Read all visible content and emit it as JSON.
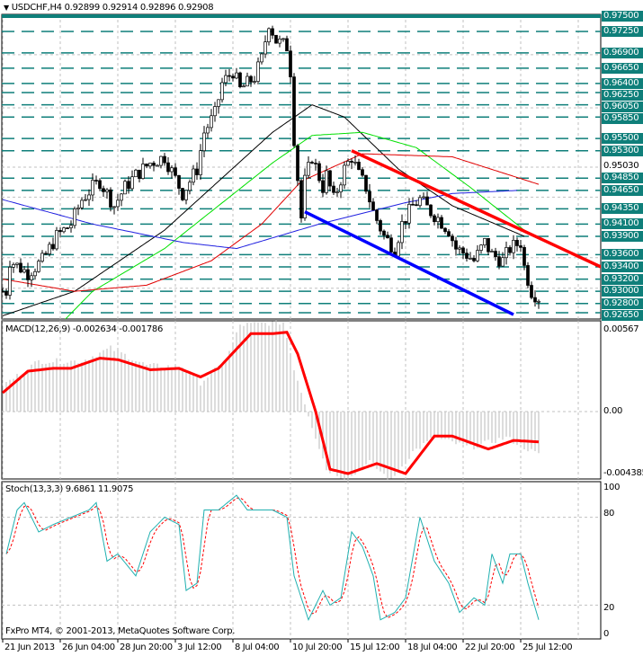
{
  "header": {
    "symbol": "USDCHF,H4",
    "ohlc": "0.92899 0.92914 0.92896 0.92908"
  },
  "copyright": "FxPro MT4, © 2001-2013, MetaQuotes Software Corp.",
  "colors": {
    "level": "#0f7f7a",
    "trend_red": "#ff0000",
    "trend_blue": "#0000ff",
    "ma_black": "#000000",
    "ma_green": "#00e000",
    "ma_red": "#e00000",
    "ma_blue": "#2020e0",
    "macd_signal": "#ff0000",
    "macd_hist": "#b8b8b8",
    "stoch_main": "#20b0b0",
    "stoch_signal": "#ff0000"
  },
  "chart_data": [
    {
      "type": "candlestick",
      "title": "USDCHF,H4",
      "ylim": [
        0.9265,
        0.975
      ],
      "price_levels": [
        "0.97500",
        "0.97250",
        "0.96900",
        "0.96650",
        "0.96400",
        "0.96250",
        "0.96050",
        "0.95850",
        "0.95500",
        "0.95300",
        "0.94850",
        "0.94650",
        "0.94350",
        "0.94100",
        "0.93900",
        "0.93600",
        "0.93400",
        "0.93200",
        "0.93000",
        "0.92800",
        "0.92650"
      ],
      "axis_ticks": [
        "0.95030"
      ],
      "x_labels": [
        "21 Jun 2013",
        "26 Jun 04:00",
        "28 Jun 20:00",
        "3 Jul 12:00",
        "8 Jul 04:00",
        "10 Jul 20:00",
        "15 Jul 12:00",
        "18 Jul 04:00",
        "22 Jul 20:00",
        "25 Jul 12:00"
      ],
      "close_path": [
        [
          1,
          0.93
        ],
        [
          2,
          0.935
        ],
        [
          7,
          0.933
        ],
        [
          11,
          0.935
        ],
        [
          15,
          0.939
        ],
        [
          19,
          0.941
        ],
        [
          22,
          0.945
        ],
        [
          25,
          0.947
        ],
        [
          27,
          0.948
        ],
        [
          31,
          0.944
        ],
        [
          34,
          0.947
        ],
        [
          37,
          0.949
        ],
        [
          41,
          0.951
        ],
        [
          45,
          0.952
        ],
        [
          50,
          0.946
        ],
        [
          54,
          0.95
        ],
        [
          56,
          0.956
        ],
        [
          59,
          0.959
        ],
        [
          61,
          0.964
        ],
        [
          64,
          0.966
        ],
        [
          66,
          0.963
        ],
        [
          70,
          0.965
        ],
        [
          72,
          0.968
        ],
        [
          74,
          0.974
        ],
        [
          76,
          0.971
        ],
        [
          79,
          0.97
        ],
        [
          80,
          0.966
        ],
        [
          81,
          0.955
        ],
        [
          83,
          0.942
        ],
        [
          84,
          0.948
        ],
        [
          86,
          0.952
        ],
        [
          89,
          0.947
        ],
        [
          90,
          0.949
        ],
        [
          92,
          0.945
        ],
        [
          95,
          0.95
        ],
        [
          97,
          0.952
        ],
        [
          99,
          0.949
        ],
        [
          101,
          0.947
        ],
        [
          103,
          0.943
        ],
        [
          106,
          0.939
        ],
        [
          109,
          0.937
        ],
        [
          111,
          0.941
        ],
        [
          114,
          0.944
        ],
        [
          116,
          0.945
        ],
        [
          119,
          0.943
        ],
        [
          121,
          0.942
        ],
        [
          124,
          0.94
        ],
        [
          126,
          0.937
        ],
        [
          129,
          0.936
        ],
        [
          131,
          0.935
        ],
        [
          134,
          0.938
        ],
        [
          136,
          0.936
        ],
        [
          139,
          0.935
        ],
        [
          141,
          0.937
        ],
        [
          144,
          0.938
        ],
        [
          145,
          0.934
        ],
        [
          147,
          0.93
        ],
        [
          149,
          0.929
        ]
      ],
      "moving_averages": [
        {
          "name": "black",
          "points": [
            [
              0,
              0.926
            ],
            [
              20,
              0.93
            ],
            [
              45,
              0.94
            ],
            [
              60,
              0.948
            ],
            [
              75,
              0.956
            ],
            [
              86,
              0.9605
            ],
            [
              95,
              0.9585
            ],
            [
              110,
              0.95
            ],
            [
              125,
              0.944
            ],
            [
              145,
              0.939
            ]
          ]
        },
        {
          "name": "green",
          "points": [
            [
              15,
              0.924
            ],
            [
              25,
              0.93
            ],
            [
              45,
              0.937
            ],
            [
              60,
              0.944
            ],
            [
              75,
              0.951
            ],
            [
              86,
              0.9555
            ],
            [
              100,
              0.956
            ],
            [
              115,
              0.9535
            ],
            [
              130,
              0.947
            ],
            [
              145,
              0.94
            ]
          ]
        },
        {
          "name": "red",
          "points": [
            [
              0,
              0.932
            ],
            [
              20,
              0.93
            ],
            [
              40,
              0.931
            ],
            [
              58,
              0.935
            ],
            [
              72,
              0.941
            ],
            [
              83,
              0.948
            ],
            [
              100,
              0.9525
            ],
            [
              125,
              0.952
            ],
            [
              149,
              0.9475
            ]
          ]
        },
        {
          "name": "blue",
          "points": [
            [
              0,
              0.945
            ],
            [
              25,
              0.941
            ],
            [
              50,
              0.938
            ],
            [
              65,
              0.937
            ],
            [
              88,
              0.941
            ],
            [
              112,
              0.9445
            ],
            [
              125,
              0.946
            ],
            [
              143,
              0.9465
            ]
          ]
        }
      ],
      "trendlines": [
        {
          "name": "red",
          "from": [
            97,
            0.953
          ],
          "to": [
            167,
            0.9338
          ]
        },
        {
          "name": "blue",
          "from": [
            84,
            0.943
          ],
          "to": [
            142,
            0.9262
          ]
        }
      ]
    },
    {
      "type": "line",
      "title": "MACD(12,26,9) -0.002634 -0.001786",
      "ylim": [
        -0.004385,
        0.00567
      ],
      "y_ticks": [
        "0.00567",
        "0.00",
        "-0.004385"
      ],
      "signal": [
        [
          0,
          0.0013
        ],
        [
          7,
          0.0028
        ],
        [
          14,
          0.003
        ],
        [
          19,
          0.003
        ],
        [
          27,
          0.0037
        ],
        [
          32,
          0.0036
        ],
        [
          41,
          0.0029
        ],
        [
          49,
          0.003
        ],
        [
          55,
          0.0024
        ],
        [
          60,
          0.003
        ],
        [
          69,
          0.0054
        ],
        [
          75,
          0.0054
        ],
        [
          79,
          0.0055
        ],
        [
          82,
          0.004
        ],
        [
          87,
          0.0
        ],
        [
          91,
          -0.004
        ],
        [
          96,
          -0.0043
        ],
        [
          104,
          -0.0036
        ],
        [
          112,
          -0.0043
        ],
        [
          120,
          -0.0017
        ],
        [
          125,
          -0.0017
        ],
        [
          135,
          -0.0026
        ],
        [
          142,
          -0.002
        ],
        [
          149,
          -0.0021
        ]
      ],
      "histogram": [
        [
          0,
          0.0018
        ],
        [
          10,
          0.0035
        ],
        [
          22,
          0.0035
        ],
        [
          30,
          0.0044
        ],
        [
          40,
          0.0032
        ],
        [
          50,
          0.0031
        ],
        [
          55,
          0.002
        ],
        [
          62,
          0.0035
        ],
        [
          66,
          0.006
        ],
        [
          78,
          0.0062
        ],
        [
          81,
          0.003
        ],
        [
          86,
          -0.001
        ],
        [
          90,
          -0.004
        ],
        [
          96,
          -0.0047
        ],
        [
          102,
          -0.0035
        ],
        [
          108,
          -0.0048
        ],
        [
          114,
          -0.0028
        ],
        [
          120,
          -0.0018
        ],
        [
          130,
          -0.0025
        ],
        [
          140,
          -0.0018
        ],
        [
          149,
          -0.003
        ]
      ]
    },
    {
      "type": "line",
      "title": "Stoch(13,3,3) 9.6861 11.9075",
      "ylim": [
        0,
        100
      ],
      "y_ticks": [
        "100",
        "80",
        "20",
        "0"
      ],
      "main": [
        [
          1,
          55
        ],
        [
          4,
          85
        ],
        [
          6,
          90
        ],
        [
          10,
          70
        ],
        [
          14,
          75
        ],
        [
          19,
          80
        ],
        [
          24,
          85
        ],
        [
          26,
          90
        ],
        [
          29,
          50
        ],
        [
          32,
          55
        ],
        [
          37,
          40
        ],
        [
          41,
          70
        ],
        [
          45,
          80
        ],
        [
          49,
          75
        ],
        [
          51,
          30
        ],
        [
          54,
          35
        ],
        [
          56,
          85
        ],
        [
          60,
          85
        ],
        [
          65,
          95
        ],
        [
          68,
          85
        ],
        [
          71,
          85
        ],
        [
          75,
          85
        ],
        [
          79,
          80
        ],
        [
          81,
          40
        ],
        [
          85,
          10
        ],
        [
          89,
          30
        ],
        [
          91,
          20
        ],
        [
          94,
          25
        ],
        [
          97,
          70
        ],
        [
          100,
          60
        ],
        [
          103,
          40
        ],
        [
          105,
          10
        ],
        [
          109,
          15
        ],
        [
          112,
          25
        ],
        [
          116,
          80
        ],
        [
          120,
          50
        ],
        [
          124,
          35
        ],
        [
          127,
          15
        ],
        [
          131,
          25
        ],
        [
          134,
          20
        ],
        [
          136,
          55
        ],
        [
          139,
          35
        ],
        [
          141,
          55
        ],
        [
          144,
          55
        ],
        [
          146,
          35
        ],
        [
          149,
          10
        ]
      ]
    }
  ]
}
